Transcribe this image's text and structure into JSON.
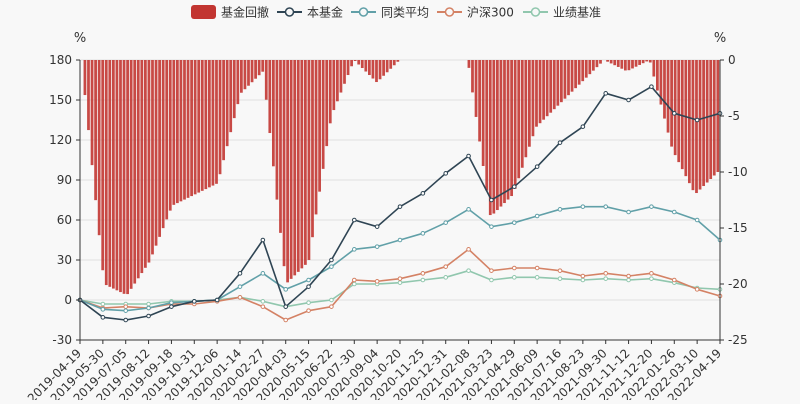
{
  "chart_data": {
    "type": "line",
    "legend": {
      "placement": "top-center",
      "items": [
        {
          "name": "基金回撤",
          "kind": "bar",
          "color": "#c23531"
        },
        {
          "name": "本基金",
          "kind": "line",
          "color": "#2f4554"
        },
        {
          "name": "同类平均",
          "kind": "line",
          "color": "#61a0a8"
        },
        {
          "name": "沪深300",
          "kind": "line",
          "color": "#d48265"
        },
        {
          "name": "业绩基准",
          "kind": "line",
          "color": "#91c7ae"
        }
      ]
    },
    "left_axis": {
      "unit": "%",
      "ylim": [
        -30,
        180
      ],
      "ticks": [
        -30,
        0,
        30,
        60,
        90,
        120,
        150,
        180
      ]
    },
    "right_axis": {
      "unit": "%",
      "ylim": [
        -25,
        0
      ],
      "ticks": [
        -25,
        -20,
        -15,
        -10,
        -5,
        0
      ]
    },
    "grid": true,
    "x_dates": [
      "2019-04-19",
      "2019-05-30",
      "2019-07-05",
      "2019-08-12",
      "2019-09-18",
      "2019-10-31",
      "2019-12-06",
      "2020-01-14",
      "2020-02-27",
      "2020-04-03",
      "2020-05-15",
      "2020-06-22",
      "2020-07-30",
      "2020-09-04",
      "2020-10-20",
      "2020-11-25",
      "2020-12-31",
      "2021-02-08",
      "2021-03-23",
      "2021-04-29",
      "2021-06-09",
      "2021-07-16",
      "2021-08-23",
      "2021-09-30",
      "2021-11-12",
      "2021-12-20",
      "2022-01-26",
      "2022-03-10",
      "2022-04-19"
    ],
    "series": [
      {
        "name": "本基金",
        "axis": "left",
        "color": "#2f4554",
        "values": [
          0,
          -13,
          -15,
          -12,
          -5,
          -1,
          0,
          20,
          45,
          -5,
          10,
          30,
          60,
          55,
          70,
          80,
          95,
          108,
          75,
          85,
          100,
          118,
          130,
          155,
          150,
          160,
          140,
          135,
          140
        ]
      },
      {
        "name": "同类平均",
        "axis": "left",
        "color": "#61a0a8",
        "values": [
          0,
          -7,
          -8,
          -6,
          -2,
          -1,
          0,
          10,
          20,
          8,
          15,
          25,
          38,
          40,
          45,
          50,
          58,
          68,
          55,
          58,
          63,
          68,
          70,
          70,
          66,
          70,
          66,
          60,
          45
        ]
      },
      {
        "name": "沪深300",
        "axis": "left",
        "color": "#d48265",
        "values": [
          0,
          -6,
          -5,
          -6,
          -3,
          -3,
          -1,
          2,
          -5,
          -15,
          -8,
          -5,
          15,
          14,
          16,
          20,
          25,
          38,
          22,
          24,
          24,
          22,
          18,
          20,
          18,
          20,
          15,
          8,
          3
        ]
      },
      {
        "name": "业绩基准",
        "axis": "left",
        "color": "#91c7ae",
        "values": [
          0,
          -3,
          -3,
          -3,
          -1,
          -1,
          0,
          2,
          -1,
          -5,
          -2,
          0,
          12,
          12,
          13,
          15,
          17,
          22,
          15,
          17,
          17,
          16,
          15,
          16,
          15,
          16,
          13,
          9,
          8
        ]
      },
      {
        "name": "基金回撤",
        "axis": "right",
        "color": "#c23531",
        "kind": "bar",
        "values": [
          0,
          -20,
          -21,
          -18,
          -13,
          -12,
          -11,
          -3,
          -1,
          -20,
          -18,
          -5,
          0,
          -2,
          0,
          0,
          0,
          0,
          -14,
          -12,
          -6,
          -4,
          -2,
          0,
          -1,
          0,
          -8,
          -12,
          -10
        ]
      }
    ]
  }
}
